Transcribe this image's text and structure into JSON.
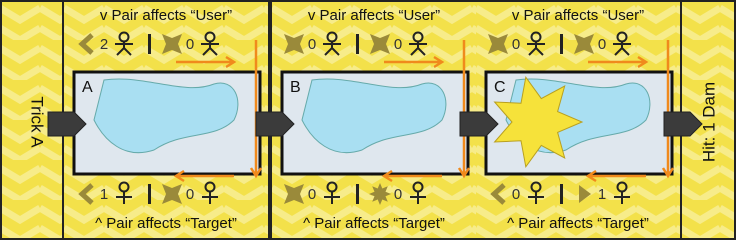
{
  "left_label": "Trick A",
  "right_label": "Hit: 1 Dam",
  "panels": [
    {
      "label": "A",
      "top": {
        "text": "v Pair affects “User”",
        "counts": [
          2,
          0
        ]
      },
      "bottom": {
        "text": "^ Pair affects “Target”",
        "counts": [
          1,
          0
        ]
      }
    },
    {
      "label": "B",
      "top": {
        "text": "v Pair affects “User”",
        "counts": [
          0,
          0
        ]
      },
      "bottom": {
        "text": "^ Pair affects “Target”",
        "counts": [
          0,
          0
        ]
      }
    },
    {
      "label": "C",
      "top": {
        "text": "v Pair affects “User”",
        "counts": [
          0,
          0
        ]
      },
      "bottom": {
        "text": "^ Pair affects “Target”",
        "counts": [
          0,
          1
        ]
      }
    }
  ]
}
